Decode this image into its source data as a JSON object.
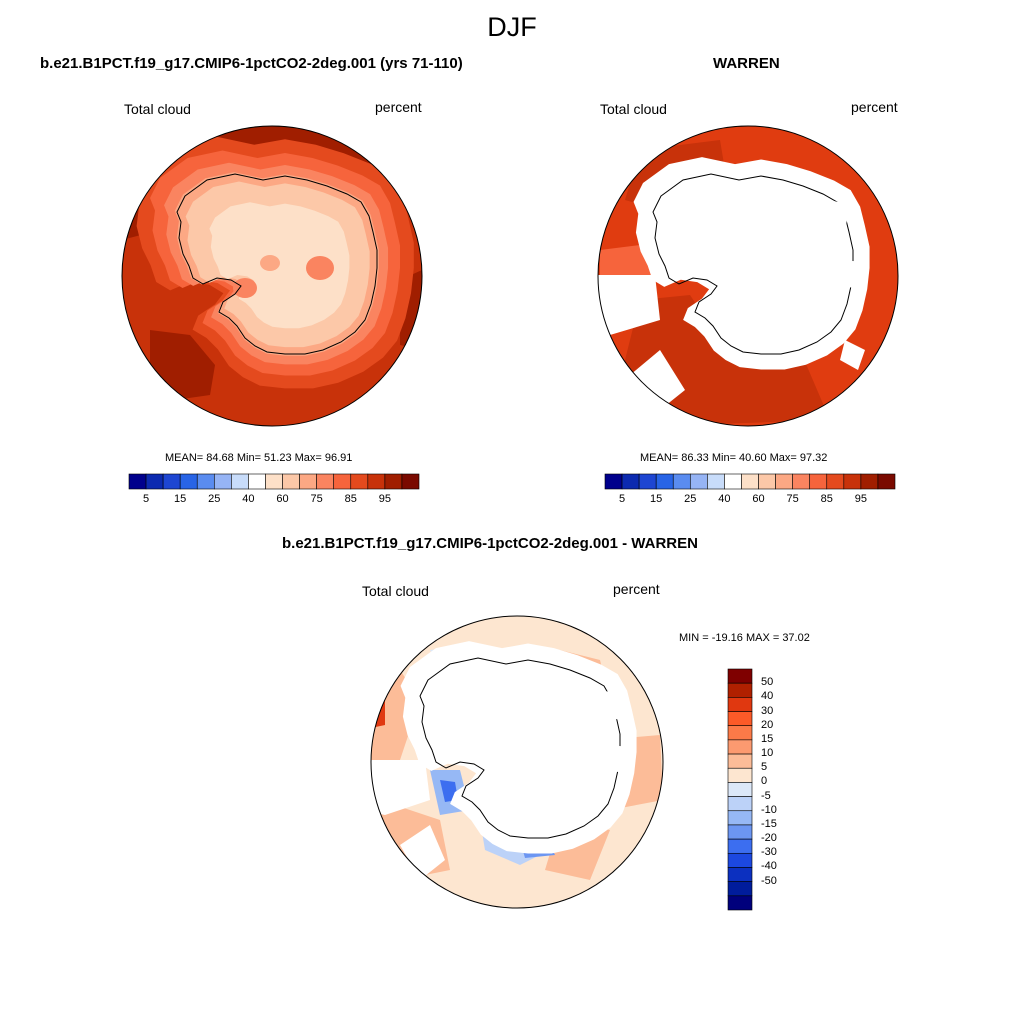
{
  "title": "DJF",
  "panels": [
    {
      "id": "case",
      "title": "b.e21.B1PCT.f19_g17.CMIP6-1pctCO2-2deg.001 (yrs 71-110)",
      "left_label": "Total cloud",
      "right_label": "percent",
      "stats": "MEAN=  84.68  Min=  51.23  Max=  96.91"
    },
    {
      "id": "obs",
      "title": "WARREN",
      "left_label": "Total cloud",
      "right_label": "percent",
      "stats": "MEAN=  86.33  Min=  40.60  Max=  97.32"
    },
    {
      "id": "diff",
      "title": "b.e21.B1PCT.f19_g17.CMIP6-1pctCO2-2deg.001 - WARREN",
      "left_label": "Total cloud",
      "right_label": "percent",
      "stats": "MIN = -19.16 MAX =  37.02"
    }
  ],
  "colorbar_abs": {
    "colors": [
      "#00008c",
      "#0c2ab0",
      "#1e46d2",
      "#2864e6",
      "#5a8cf0",
      "#96b4f5",
      "#c8dcfa",
      "#ffffff",
      "#fde0c8",
      "#fcc8a8",
      "#fca884",
      "#fa8460",
      "#f6643c",
      "#e44a1e",
      "#c8320a",
      "#a01e00",
      "#7a0a00"
    ],
    "tick_labels": [
      "5",
      "15",
      "25",
      "40",
      "60",
      "75",
      "85",
      "95"
    ]
  },
  "colorbar_diff": {
    "colors": [
      "#7f0000",
      "#b02000",
      "#e03810",
      "#fc5a28",
      "#fc7a48",
      "#fc9a70",
      "#fcbc98",
      "#fde6d0",
      "#dce8f8",
      "#bcd2f8",
      "#96b8f5",
      "#6c96f2",
      "#3c6ef0",
      "#1c48e0",
      "#0c30c0",
      "#001c9c",
      "#00007c"
    ],
    "tick_labels": [
      "50",
      "40",
      "30",
      "20",
      "15",
      "10",
      "5",
      "0",
      "-5",
      "-10",
      "-15",
      "-20",
      "-30",
      "-40",
      "-50"
    ]
  },
  "colors": {
    "ocean_case": "#c8320a",
    "ocean_case_dark": "#a01e00",
    "ocean_obs": "#e03c10",
    "diff_base": "#fde6d0"
  }
}
